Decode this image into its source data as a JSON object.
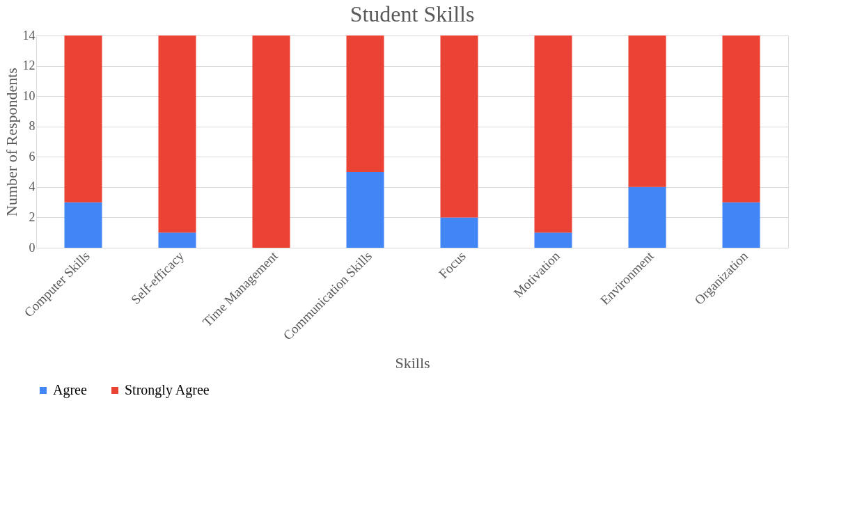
{
  "chart_data": {
    "type": "bar",
    "title": "Student Skills",
    "xlabel": "Skills",
    "ylabel": "Number of Respondents",
    "categories": [
      "Computer Skills",
      "Self-efficacy",
      "Time Management",
      "Communication Skills",
      "Focus",
      "Motivation",
      "Environment",
      "Organization"
    ],
    "series": [
      {
        "name": "Agree",
        "color": "#4285f4",
        "values": [
          3,
          1,
          0,
          5,
          2,
          1,
          4,
          3
        ]
      },
      {
        "name": "Strongly Agree",
        "color": "#ea4335",
        "values": [
          11,
          13,
          14,
          9,
          12,
          13,
          10,
          11
        ]
      }
    ],
    "stacked": true,
    "ylim": [
      0,
      14
    ],
    "yticks": [
      0,
      2,
      4,
      6,
      8,
      10,
      12,
      14
    ],
    "grid": "y",
    "legend": "bottom"
  }
}
